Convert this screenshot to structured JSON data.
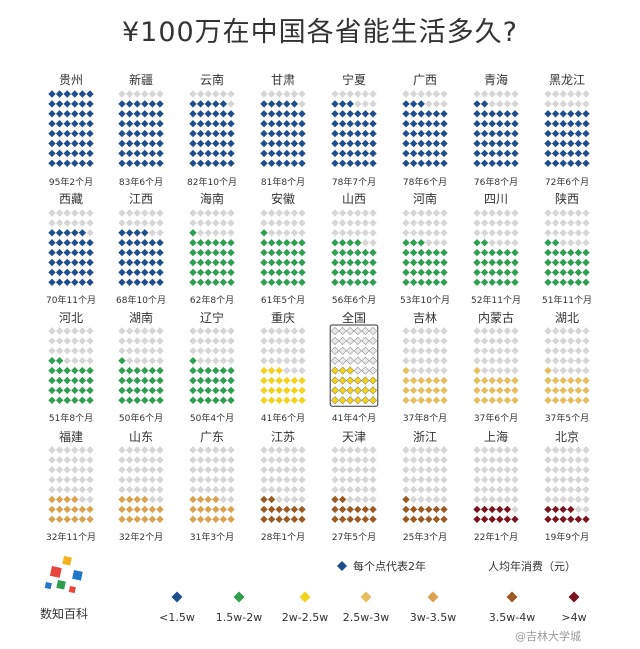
{
  "title": "¥100万在中国各省能生活多久?",
  "chart_data": {
    "type": "dot-grid",
    "dot_unit_years": 2,
    "legend_dot_note": "每个点代表2年",
    "legend_title": "人均年消费（元）",
    "categories": [
      {
        "label": "<1.5w",
        "color": "#1f4e8c"
      },
      {
        "label": "1.5w-2w",
        "color": "#2e9e4f"
      },
      {
        "label": "2w-2.5w",
        "color": "#f2d21b"
      },
      {
        "label": "2.5w-3w",
        "color": "#e7be5e"
      },
      {
        "label": "3w-3.5w",
        "color": "#d9a24f"
      },
      {
        "label": "3.5w-4w",
        "color": "#9b5a22"
      },
      {
        "label": ">4w",
        "color": "#7a1420"
      }
    ],
    "provinces": [
      {
        "name": "贵州",
        "duration": "95年2个月",
        "years": 95.17,
        "category": 0
      },
      {
        "name": "新疆",
        "duration": "83年6个月",
        "years": 83.5,
        "category": 0
      },
      {
        "name": "云南",
        "duration": "82年10个月",
        "years": 82.83,
        "category": 0
      },
      {
        "name": "甘肃",
        "duration": "81年8个月",
        "years": 81.67,
        "category": 0
      },
      {
        "name": "宁夏",
        "duration": "78年7个月",
        "years": 78.58,
        "category": 0
      },
      {
        "name": "广西",
        "duration": "78年6个月",
        "years": 78.5,
        "category": 0
      },
      {
        "name": "青海",
        "duration": "76年8个月",
        "years": 76.67,
        "category": 0
      },
      {
        "name": "黑龙江",
        "duration": "72年6个月",
        "years": 72.5,
        "category": 0
      },
      {
        "name": "西藏",
        "duration": "70年11个月",
        "years": 70.92,
        "category": 0
      },
      {
        "name": "江西",
        "duration": "68年10个月",
        "years": 68.83,
        "category": 0
      },
      {
        "name": "海南",
        "duration": "62年8个月",
        "years": 62.67,
        "category": 1
      },
      {
        "name": "安徽",
        "duration": "61年5个月",
        "years": 61.42,
        "category": 1
      },
      {
        "name": "山西",
        "duration": "56年6个月",
        "years": 56.5,
        "category": 1
      },
      {
        "name": "河南",
        "duration": "53年10个月",
        "years": 53.83,
        "category": 1
      },
      {
        "name": "四川",
        "duration": "52年11个月",
        "years": 52.92,
        "category": 1
      },
      {
        "name": "陕西",
        "duration": "51年11个月",
        "years": 51.92,
        "category": 1
      },
      {
        "name": "河北",
        "duration": "51年8个月",
        "years": 51.67,
        "category": 1
      },
      {
        "name": "湖南",
        "duration": "50年6个月",
        "years": 50.5,
        "category": 1
      },
      {
        "name": "辽宁",
        "duration": "50年4个月",
        "years": 50.33,
        "category": 1
      },
      {
        "name": "重庆",
        "duration": "41年6个月",
        "years": 41.5,
        "category": 2
      },
      {
        "name": "全国",
        "duration": "41年4个月",
        "years": 41.33,
        "category": 2,
        "national": true
      },
      {
        "name": "吉林",
        "duration": "37年8个月",
        "years": 37.67,
        "category": 3
      },
      {
        "name": "内蒙古",
        "duration": "37年6个月",
        "years": 37.5,
        "category": 3
      },
      {
        "name": "湖北",
        "duration": "37年5个月",
        "years": 37.42,
        "category": 3
      },
      {
        "name": "福建",
        "duration": "32年11个月",
        "years": 32.92,
        "category": 4
      },
      {
        "name": "山东",
        "duration": "32年2个月",
        "years": 32.17,
        "category": 4
      },
      {
        "name": "广东",
        "duration": "31年3个月",
        "years": 31.25,
        "category": 4
      },
      {
        "name": "江苏",
        "duration": "28年1个月",
        "years": 28.08,
        "category": 5
      },
      {
        "name": "天津",
        "duration": "27年5个月",
        "years": 27.42,
        "category": 5
      },
      {
        "name": "浙江",
        "duration": "25年3个月",
        "years": 25.25,
        "category": 5
      },
      {
        "name": "上海",
        "duration": "22年1个月",
        "years": 22.08,
        "category": 6
      },
      {
        "name": "北京",
        "duration": "19年9个月",
        "years": 19.75,
        "category": 6
      }
    ],
    "empty_dot_color": "#d6d6d6"
  },
  "logo": {
    "text": "数知百科"
  },
  "watermark": "@吉林大学城"
}
